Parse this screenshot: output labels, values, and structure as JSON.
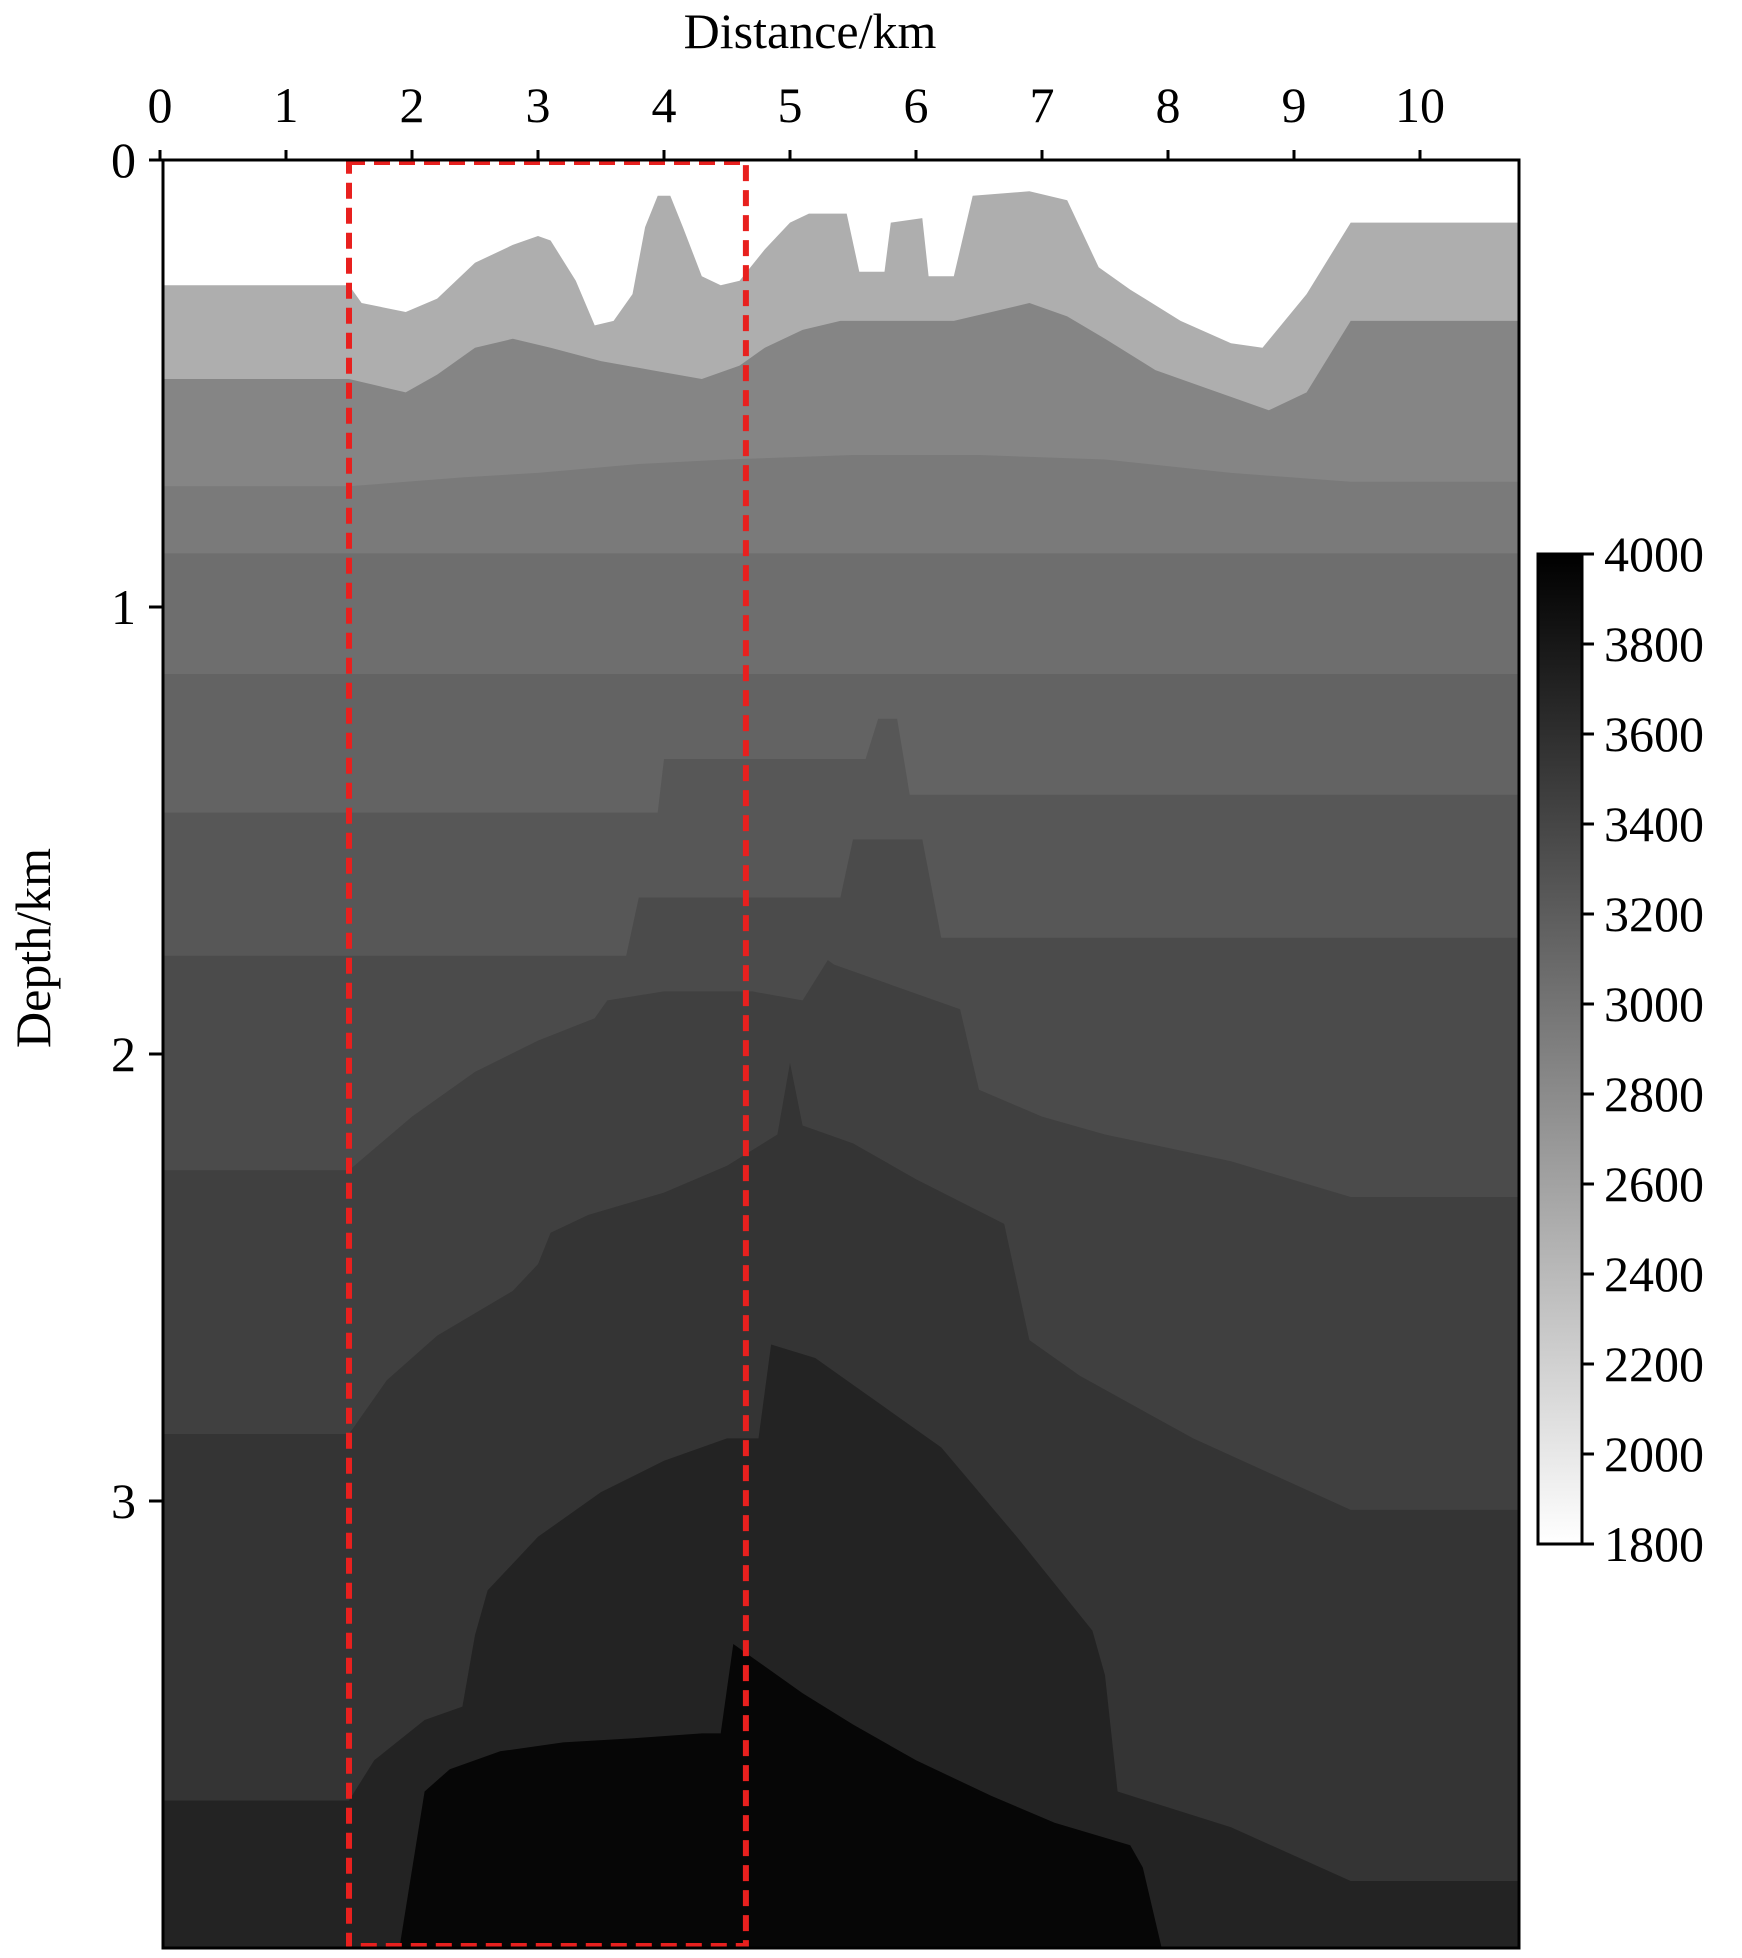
{
  "chart_data": {
    "type": "heatmap",
    "title": "",
    "xlabel": "Distance/km",
    "ylabel": "Depth/km",
    "x_ticks": [
      0,
      1,
      2,
      3,
      4,
      5,
      6,
      7,
      8,
      9,
      10
    ],
    "y_ticks": [
      0,
      1,
      2,
      3
    ],
    "xlim": [
      0,
      10.9
    ],
    "ylim": [
      4.0,
      0
    ],
    "colorbar": {
      "ticks": [
        1800,
        2000,
        2200,
        2400,
        2600,
        2800,
        3000,
        3200,
        3400,
        3600,
        3800,
        4000
      ],
      "range": [
        1800,
        4000
      ],
      "colormap": "gray_reversed",
      "low_color": "#ffffff",
      "high_color": "#000000"
    },
    "highlight_box": {
      "x": [
        1.5,
        4.65
      ],
      "y": [
        0,
        4.0
      ],
      "color": "#e8201e",
      "style": "dashed"
    },
    "layers": [
      {
        "velocity": 1800,
        "top": [
          [
            0,
            0
          ],
          [
            10.9,
            0
          ]
        ]
      },
      {
        "velocity": 2500,
        "top": [
          [
            0,
            0.28
          ],
          [
            1.5,
            0.28
          ],
          [
            1.6,
            0.32
          ],
          [
            1.95,
            0.34
          ],
          [
            2.2,
            0.31
          ],
          [
            2.5,
            0.23
          ],
          [
            2.8,
            0.19
          ],
          [
            3.0,
            0.17
          ],
          [
            3.1,
            0.18
          ],
          [
            3.3,
            0.27
          ],
          [
            3.45,
            0.37
          ],
          [
            3.6,
            0.36
          ],
          [
            3.75,
            0.3
          ],
          [
            3.85,
            0.15
          ],
          [
            3.95,
            0.08
          ],
          [
            4.05,
            0.08
          ],
          [
            4.15,
            0.15
          ],
          [
            4.3,
            0.26
          ],
          [
            4.45,
            0.28
          ],
          [
            4.6,
            0.27
          ],
          [
            4.8,
            0.2
          ],
          [
            5.0,
            0.14
          ],
          [
            5.15,
            0.12
          ],
          [
            5.45,
            0.12
          ],
          [
            5.55,
            0.25
          ],
          [
            5.75,
            0.25
          ],
          [
            5.8,
            0.14
          ],
          [
            6.05,
            0.13
          ],
          [
            6.1,
            0.26
          ],
          [
            6.3,
            0.26
          ],
          [
            6.45,
            0.08
          ],
          [
            6.9,
            0.07
          ],
          [
            7.2,
            0.09
          ],
          [
            7.45,
            0.24
          ],
          [
            7.7,
            0.29
          ],
          [
            8.1,
            0.36
          ],
          [
            8.5,
            0.41
          ],
          [
            8.75,
            0.42
          ],
          [
            9.1,
            0.3
          ],
          [
            9.45,
            0.14
          ],
          [
            10.9,
            0.14
          ]
        ]
      },
      {
        "velocity": 2850,
        "top": [
          [
            0,
            0.49
          ],
          [
            1.5,
            0.49
          ],
          [
            1.95,
            0.52
          ],
          [
            2.2,
            0.48
          ],
          [
            2.5,
            0.42
          ],
          [
            2.8,
            0.4
          ],
          [
            3.1,
            0.42
          ],
          [
            3.5,
            0.45
          ],
          [
            3.9,
            0.47
          ],
          [
            4.3,
            0.49
          ],
          [
            4.6,
            0.46
          ],
          [
            4.8,
            0.42
          ],
          [
            5.1,
            0.38
          ],
          [
            5.4,
            0.36
          ],
          [
            5.8,
            0.36
          ],
          [
            6.3,
            0.36
          ],
          [
            6.6,
            0.34
          ],
          [
            6.9,
            0.32
          ],
          [
            7.2,
            0.35
          ],
          [
            7.5,
            0.4
          ],
          [
            7.9,
            0.47
          ],
          [
            8.3,
            0.51
          ],
          [
            8.8,
            0.56
          ],
          [
            9.1,
            0.52
          ],
          [
            9.45,
            0.36
          ],
          [
            10.9,
            0.36
          ]
        ]
      },
      {
        "velocity": 2950,
        "top": [
          [
            0,
            0.73
          ],
          [
            1.5,
            0.73
          ],
          [
            2.4,
            0.71
          ],
          [
            3.0,
            0.7
          ],
          [
            3.8,
            0.68
          ],
          [
            4.5,
            0.67
          ],
          [
            5.5,
            0.66
          ],
          [
            6.5,
            0.66
          ],
          [
            7.5,
            0.67
          ],
          [
            8.5,
            0.7
          ],
          [
            9.45,
            0.72
          ],
          [
            10.9,
            0.72
          ]
        ]
      },
      {
        "velocity": 3050,
        "top": [
          [
            0,
            0.88
          ],
          [
            10.9,
            0.88
          ]
        ]
      },
      {
        "velocity": 3150,
        "top": [
          [
            0,
            1.15
          ],
          [
            10.9,
            1.15
          ]
        ]
      },
      {
        "velocity": 3250,
        "top": [
          [
            0,
            1.46
          ],
          [
            3.95,
            1.46
          ],
          [
            4.0,
            1.34
          ],
          [
            5.6,
            1.34
          ],
          [
            5.7,
            1.25
          ],
          [
            5.85,
            1.25
          ],
          [
            5.95,
            1.42
          ],
          [
            10.9,
            1.42
          ]
        ]
      },
      {
        "velocity": 3350,
        "top": [
          [
            0,
            1.78
          ],
          [
            3.7,
            1.78
          ],
          [
            3.8,
            1.65
          ],
          [
            5.4,
            1.65
          ],
          [
            5.5,
            1.52
          ],
          [
            6.05,
            1.52
          ],
          [
            6.2,
            1.74
          ],
          [
            10.9,
            1.74
          ]
        ]
      },
      {
        "velocity": 3450,
        "top": [
          [
            0,
            2.26
          ],
          [
            1.5,
            2.26
          ],
          [
            2.0,
            2.14
          ],
          [
            2.5,
            2.04
          ],
          [
            3.0,
            1.97
          ],
          [
            3.45,
            1.92
          ],
          [
            3.55,
            1.88
          ],
          [
            4.0,
            1.86
          ],
          [
            4.7,
            1.86
          ],
          [
            5.1,
            1.88
          ],
          [
            5.3,
            1.79
          ],
          [
            5.35,
            1.8
          ],
          [
            6.35,
            1.9
          ],
          [
            6.5,
            2.08
          ],
          [
            7.0,
            2.14
          ],
          [
            7.5,
            2.18
          ],
          [
            8.5,
            2.24
          ],
          [
            9.45,
            2.32
          ],
          [
            10.9,
            2.32
          ]
        ]
      },
      {
        "velocity": 3550,
        "top": [
          [
            0,
            2.85
          ],
          [
            1.5,
            2.85
          ],
          [
            1.8,
            2.73
          ],
          [
            2.2,
            2.63
          ],
          [
            2.8,
            2.53
          ],
          [
            3.0,
            2.47
          ],
          [
            3.1,
            2.4
          ],
          [
            3.4,
            2.36
          ],
          [
            4.0,
            2.31
          ],
          [
            4.5,
            2.25
          ],
          [
            4.9,
            2.18
          ],
          [
            5.0,
            2.02
          ],
          [
            5.1,
            2.16
          ],
          [
            5.5,
            2.2
          ],
          [
            6.0,
            2.28
          ],
          [
            6.7,
            2.38
          ],
          [
            6.9,
            2.64
          ],
          [
            7.3,
            2.72
          ],
          [
            8.2,
            2.86
          ],
          [
            9.45,
            3.02
          ],
          [
            10.9,
            3.02
          ]
        ]
      },
      {
        "velocity": 3700,
        "top": [
          [
            0,
            3.67
          ],
          [
            1.5,
            3.67
          ],
          [
            1.7,
            3.58
          ],
          [
            2.1,
            3.49
          ],
          [
            2.4,
            3.46
          ],
          [
            2.5,
            3.3
          ],
          [
            2.6,
            3.2
          ],
          [
            3.0,
            3.08
          ],
          [
            3.5,
            2.98
          ],
          [
            4.0,
            2.91
          ],
          [
            4.5,
            2.86
          ],
          [
            4.75,
            2.86
          ],
          [
            4.85,
            2.65
          ],
          [
            5.2,
            2.68
          ],
          [
            5.6,
            2.76
          ],
          [
            6.2,
            2.88
          ],
          [
            6.8,
            3.08
          ],
          [
            7.4,
            3.29
          ],
          [
            7.5,
            3.39
          ],
          [
            7.6,
            3.65
          ],
          [
            8.5,
            3.73
          ],
          [
            9.45,
            3.85
          ],
          [
            10.9,
            3.85
          ]
        ]
      },
      {
        "velocity": 3950,
        "top": [
          [
            1.9,
            4.0
          ],
          [
            2.1,
            3.65
          ],
          [
            2.3,
            3.6
          ],
          [
            2.7,
            3.56
          ],
          [
            3.2,
            3.54
          ],
          [
            3.8,
            3.53
          ],
          [
            4.3,
            3.52
          ],
          [
            4.45,
            3.52
          ],
          [
            4.55,
            3.32
          ],
          [
            4.65,
            3.34
          ],
          [
            5.1,
            3.43
          ],
          [
            5.5,
            3.5
          ],
          [
            6.0,
            3.58
          ],
          [
            6.6,
            3.66
          ],
          [
            7.1,
            3.72
          ],
          [
            7.7,
            3.77
          ],
          [
            7.8,
            3.82
          ],
          [
            7.95,
            4.0
          ]
        ]
      }
    ]
  }
}
